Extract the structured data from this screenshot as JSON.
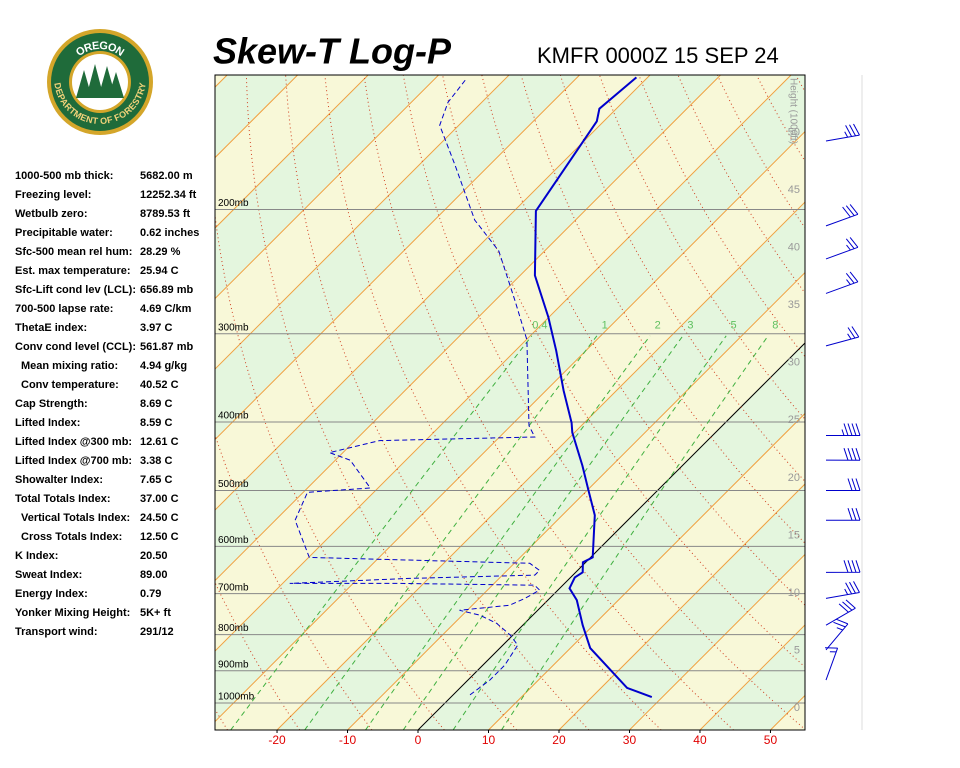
{
  "logo": {
    "top": "OREGON",
    "bottom": "DEPARTMENT OF FORESTRY"
  },
  "indices": [
    [
      "1000-500 mb thick:",
      "5682.00 m"
    ],
    [
      "Freezing level:",
      "12252.34 ft"
    ],
    [
      "Wetbulb zero:",
      "8789.53 ft"
    ],
    [
      "Precipitable water:",
      "0.62 inches"
    ],
    [
      "Sfc-500 mean rel hum:",
      "28.29 %"
    ],
    [
      "Est. max temperature:",
      "25.94 C"
    ],
    [
      "Sfc-Lift cond lev (LCL):",
      "656.89 mb"
    ],
    [
      "700-500 lapse rate:",
      "4.69 C/km"
    ],
    [
      "ThetaE index:",
      "3.97 C"
    ],
    [
      "Conv cond level (CCL):",
      "561.87 mb"
    ],
    [
      "Mean mixing ratio:",
      "4.94 g/kg"
    ],
    [
      "Conv temperature:",
      "40.52 C"
    ],
    [
      "Cap Strength:",
      "8.69 C"
    ],
    [
      "Lifted Index:",
      "8.59 C"
    ],
    [
      "Lifted Index @300 mb:",
      "12.61 C"
    ],
    [
      "Lifted Index @700 mb:",
      "3.38 C"
    ],
    [
      "Showalter Index:",
      "7.65 C"
    ],
    [
      "Total Totals Index:",
      "37.00 C"
    ],
    [
      "Vertical Totals Index:",
      "24.50 C"
    ],
    [
      "Cross Totals Index:",
      "12.50 C"
    ],
    [
      "K Index:",
      "20.50"
    ],
    [
      "Sweat Index:",
      "89.00"
    ],
    [
      "Energy Index:",
      "0.79"
    ],
    [
      "Yonker Mixing Height:",
      "5K+ ft"
    ],
    [
      "Transport wind:",
      "291/12"
    ]
  ],
  "chart_data": {
    "type": "skewt",
    "title": "Skew-T Log-P",
    "subtitle": "KMFR 0000Z 15 SEP 24",
    "tlim": [
      -28.8,
      54.9
    ],
    "plim": [
      1092,
      129
    ],
    "xticks": [
      -20,
      -10,
      0,
      10,
      20,
      30,
      40,
      50
    ],
    "pticks": [
      {
        "value": 200,
        "label": "200mb"
      },
      {
        "value": 300,
        "label": "300mb"
      },
      {
        "value": 400,
        "label": "400mb"
      },
      {
        "value": 500,
        "label": "500mb"
      },
      {
        "value": 600,
        "label": "600mb"
      },
      {
        "value": 700,
        "label": "700mb"
      },
      {
        "value": 800,
        "label": "800mb"
      },
      {
        "value": 900,
        "label": "900mb"
      },
      {
        "value": 1000,
        "label": "1000mb"
      }
    ],
    "height_label": "Height (1000ft)",
    "hlim": [
      -1.9,
      55
    ],
    "hticks": [
      0,
      5,
      10,
      15,
      20,
      25,
      30,
      35,
      40,
      45,
      50
    ],
    "mixing_ratios": [
      0.4,
      1,
      2,
      3,
      5,
      8
    ],
    "series": [
      {
        "color": "#0000cc",
        "pressure": [
          981,
          952,
          836,
          776,
          715,
          688,
          664,
          653,
          632,
          622,
          542,
          500,
          461,
          414,
          401,
          361,
          317,
          284,
          248,
          201,
          150,
          144,
          130
        ],
        "temperature": [
          28.5,
          23.7,
          12.8,
          8.5,
          4.1,
          1.4,
          0.6,
          1.0,
          -0.4,
          0.3,
          -5.4,
          -9.8,
          -14.2,
          -20.3,
          -21.8,
          -27.5,
          -34.2,
          -40.1,
          -47.9,
          -56.9,
          -61.0,
          -62.4,
          -61.6
        ]
      },
      {
        "color": "#0000cc",
        "pressure": [
          974,
          928,
          884,
          828,
          801,
          771,
          751,
          739,
          727,
          711,
          692,
          681,
          677,
          677,
          666,
          659,
          649,
          634,
          622,
          551,
          503,
          496,
          453,
          442,
          425,
          420,
          405,
          306,
          269,
          229,
          207,
          173,
          152,
          141,
          131
        ],
        "temperature": [
          2.4,
          3.1,
          3.1,
          2.1,
          -0.4,
          -4.0,
          -7.5,
          -11.1,
          -4.7,
          -3.5,
          -2.6,
          -4.0,
          -23.4,
          -39.0,
          -22.7,
          -5.4,
          -5.4,
          -7.8,
          -39.9,
          -47.2,
          -49.4,
          -41.1,
          -47.9,
          -51.9,
          -46.5,
          -25.0,
          -27.4,
          -39.9,
          -47.2,
          -56.5,
          -64.3,
          -74.9,
          -82.7,
          -84.8,
          -85.5
        ]
      }
    ],
    "winds": {
      "pressure": [
        160,
        211,
        235,
        263,
        312,
        418,
        453,
        500,
        551,
        653,
        711,
        776,
        841,
        928
      ],
      "direction": [
        260,
        250,
        250,
        250,
        255,
        270,
        270,
        270,
        270,
        270,
        260,
        240,
        220,
        200
      ],
      "speed": [
        35,
        30,
        25,
        25,
        25,
        45,
        40,
        30,
        30,
        40,
        35,
        30,
        25,
        15
      ]
    }
  }
}
